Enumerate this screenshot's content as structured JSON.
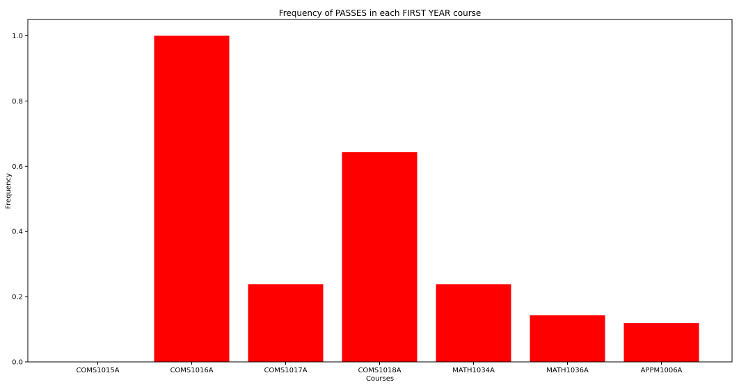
{
  "chart_data": {
    "type": "bar",
    "title": "Frequency of PASSES in each FIRST YEAR course",
    "xlabel": "Courses",
    "ylabel": "Frequency",
    "categories": [
      "COMS1015A",
      "COMS1016A",
      "COMS1017A",
      "COMS1018A",
      "MATH1034A",
      "MATH1036A",
      "APPM1006A"
    ],
    "values": [
      0.0,
      1.0,
      0.238,
      0.643,
      0.238,
      0.143,
      0.119
    ],
    "ylim": [
      0,
      1.05
    ],
    "yticks": [
      "0.0",
      "0.2",
      "0.4",
      "0.6",
      "0.8",
      "1.0"
    ],
    "grid": false,
    "legend": "none",
    "bar_color": "#ff0000"
  }
}
